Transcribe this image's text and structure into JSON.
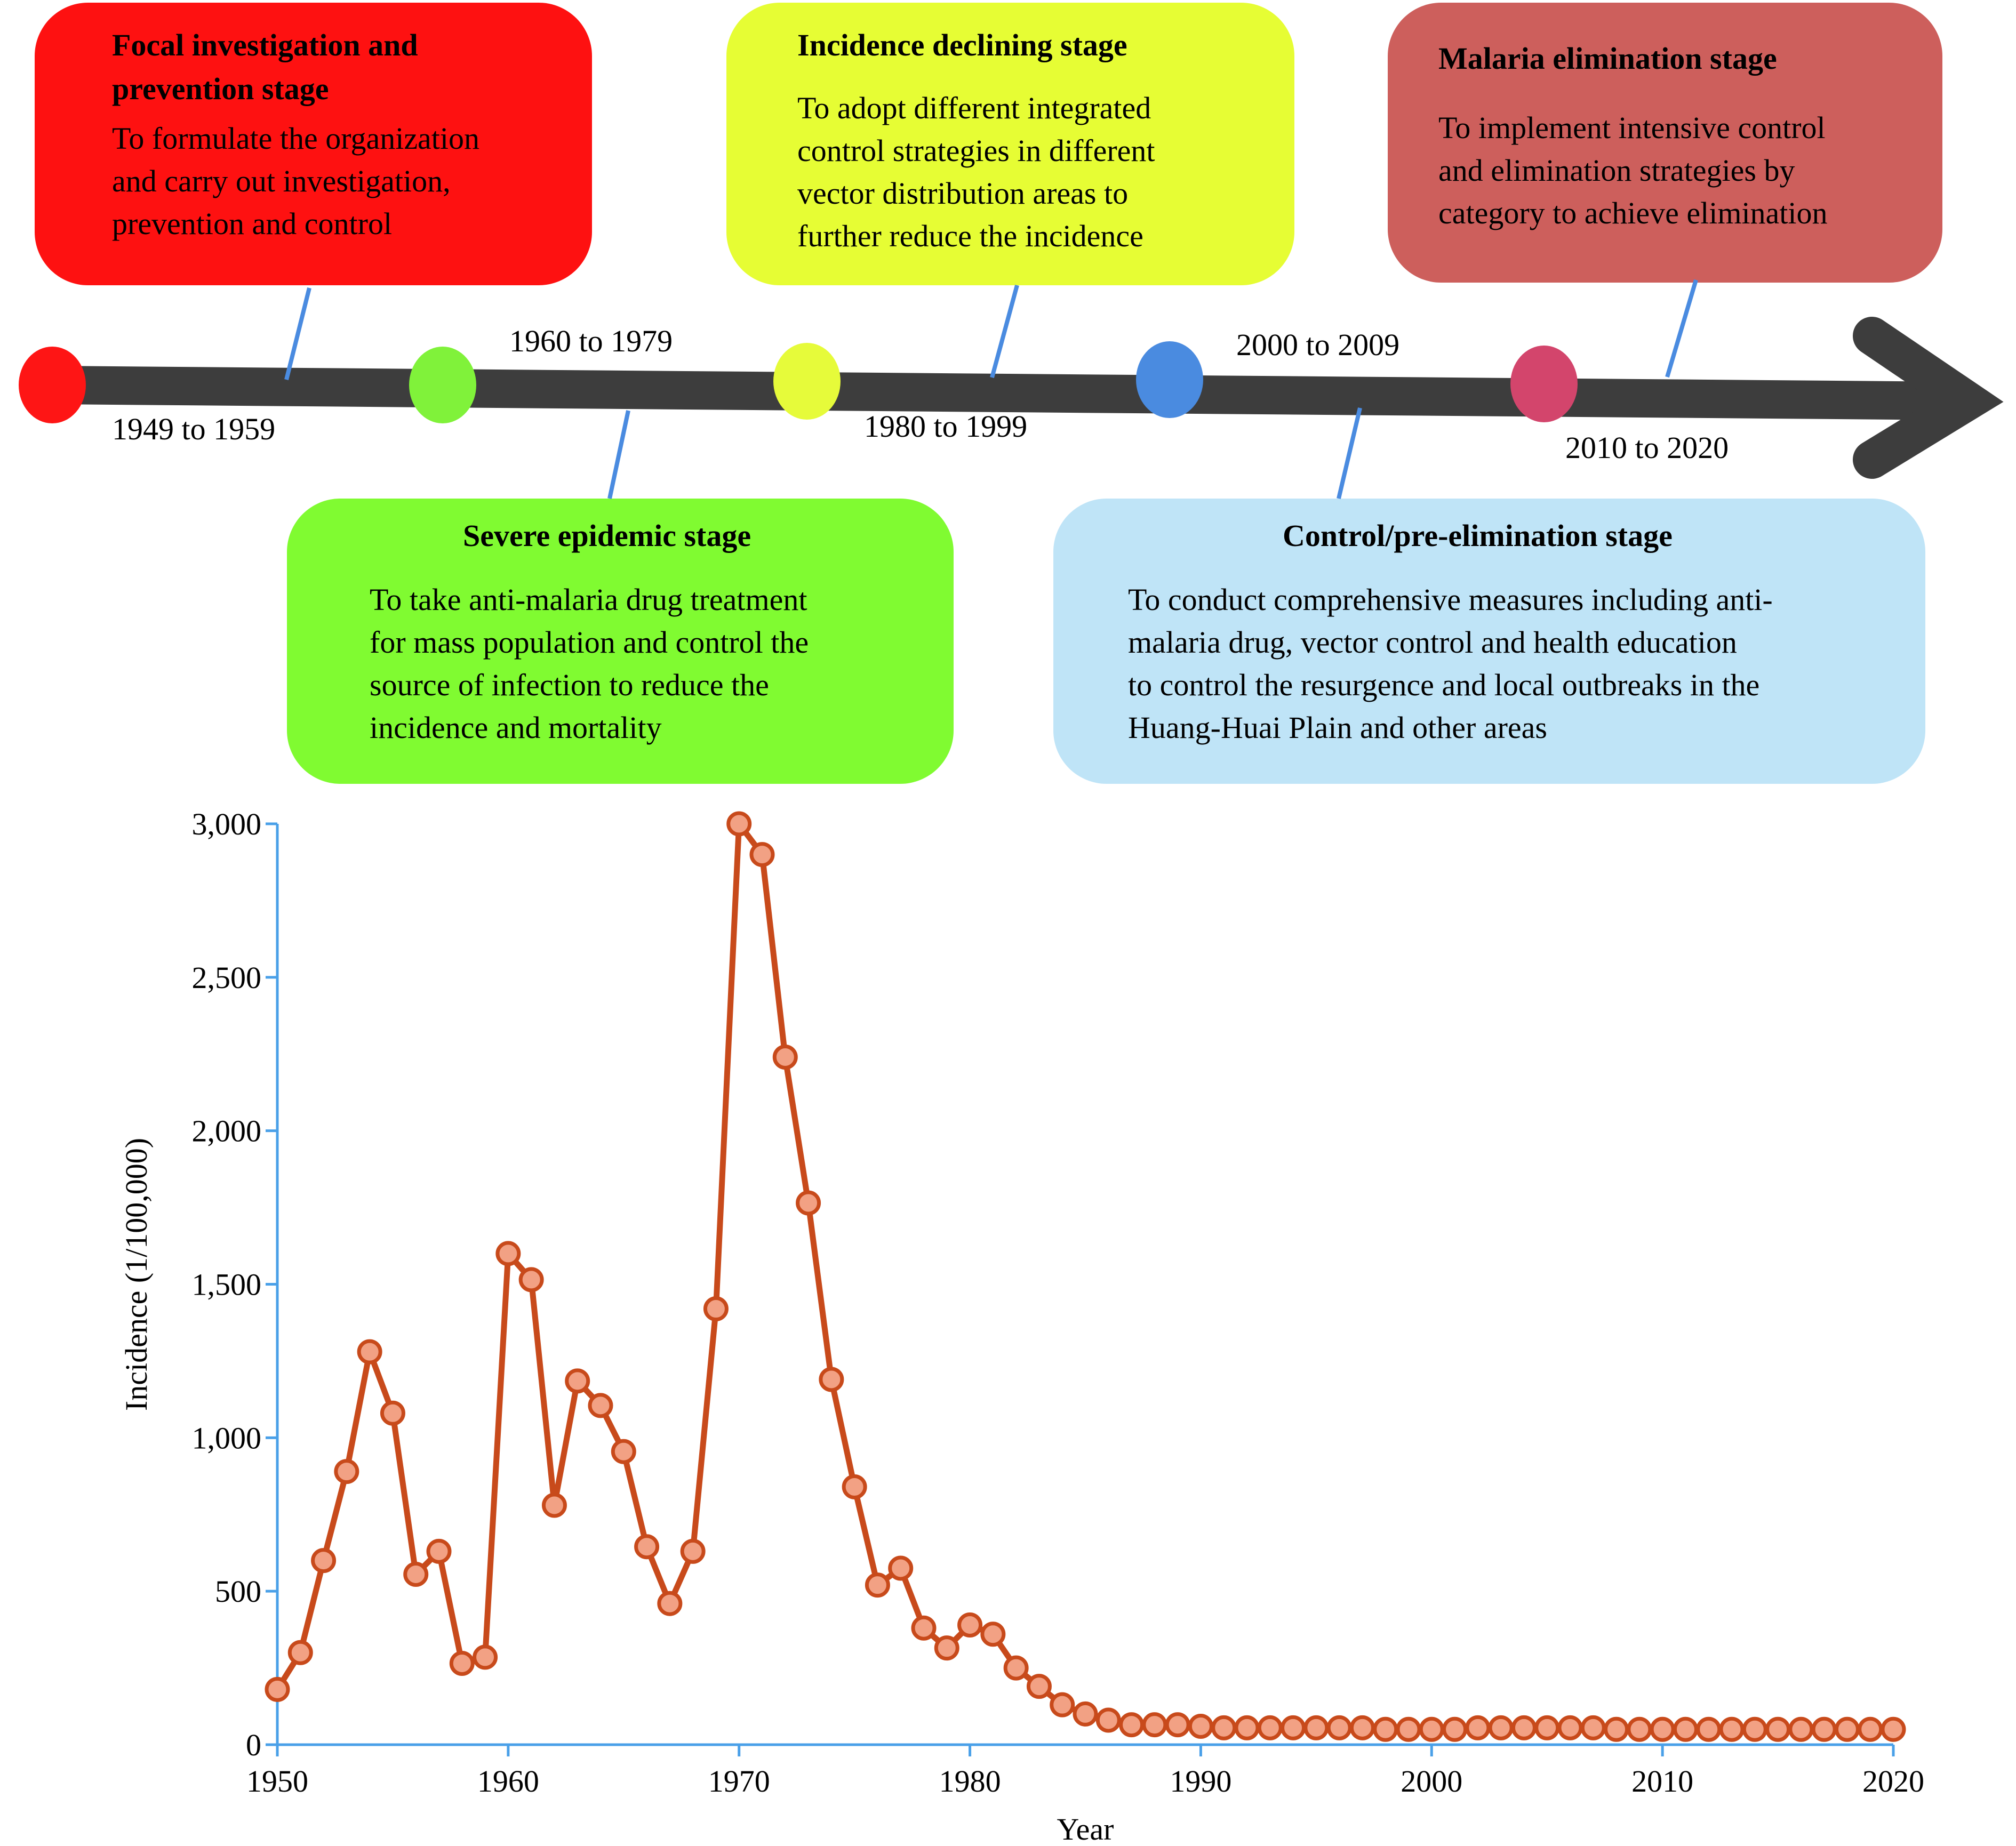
{
  "timeline": {
    "stages": [
      {
        "period": "1949 to 1959",
        "title_lines": [
          "Focal investigation and",
          "prevention stage"
        ],
        "text": "To formulate the organization\nand carry out investigation,\nprevention and control",
        "box_color": "#fe1111",
        "dot_color": "#fe1515"
      },
      {
        "period": "1960 to 1979",
        "title_lines": [
          "Severe epidemic stage"
        ],
        "text": "To take anti-malaria drug treatment\nfor mass population and control the\nsource of infection to reduce the\nincidence and mortality",
        "box_color": "#80fb31",
        "dot_color": "#80f23a"
      },
      {
        "period": "1980 to 1999",
        "title_lines": [
          "Incidence declining stage"
        ],
        "text": "To adopt different integrated\ncontrol strategies in different\nvector distribution areas to\nfurther reduce the incidence",
        "box_color": "#e6fd34",
        "dot_color": "#e6fb3a"
      },
      {
        "period": "2000 to 2009",
        "title_lines": [
          "Control/pre-elimination stage"
        ],
        "text": "To conduct comprehensive measures including anti-\nmalaria drug, vector control and health education\nto control the resurgence and local outbreaks in the\nHuang-Huai Plain and other areas",
        "box_color": "#bfe4f7",
        "dot_color": "#4a8be0"
      },
      {
        "period": "2010 to 2020",
        "title_lines": [
          "Malaria elimination stage"
        ],
        "text": "To implement intensive control\nand elimination strategies by\ncategory to achieve elimination",
        "box_color": "#cd5f5c",
        "dot_color": "#d3456c"
      }
    ],
    "arrow_color": "#3d3d3d",
    "connector_color": "#4a8be0"
  },
  "chart_data": {
    "type": "line",
    "xlabel": "Year",
    "ylabel": "Incidence (1/100,000)",
    "xlim": [
      1950,
      2020
    ],
    "ylim": [
      0,
      3000
    ],
    "xticks": [
      "1950",
      "1960",
      "1970",
      "1980",
      "1990",
      "2000",
      "2010",
      "2020"
    ],
    "yticks": [
      "0",
      "500",
      "1,000",
      "1,500",
      "2,000",
      "2,500",
      "3,000"
    ],
    "line_color": "#c84a1b",
    "marker_fill": "#f2a184",
    "axis_color": "#4aa0e8",
    "grid": false,
    "series": [
      {
        "x": [
          1950,
          1951,
          1952,
          1953,
          1954,
          1955,
          1956,
          1957,
          1958,
          1959,
          1960,
          1961,
          1962,
          1963,
          1964,
          1965,
          1966,
          1967,
          1968,
          1969,
          1970,
          1971,
          1972,
          1973,
          1974,
          1975,
          1976,
          1977,
          1978,
          1979,
          1980,
          1981,
          1982,
          1983,
          1984,
          1985,
          1986,
          1987,
          1988,
          1989,
          1990,
          1991,
          1992,
          1993,
          1994,
          1995,
          1996,
          1997,
          1998,
          1999,
          2000,
          2001,
          2002,
          2003,
          2004,
          2005,
          2006,
          2007,
          2008,
          2009,
          2010,
          2011,
          2012,
          2013,
          2014,
          2015,
          2016,
          2017,
          2018,
          2019,
          2020
        ],
        "values": [
          180,
          300,
          600,
          890,
          1280,
          1080,
          555,
          630,
          265,
          285,
          1600,
          1515,
          780,
          1185,
          1105,
          955,
          645,
          460,
          630,
          1420,
          3000,
          2900,
          2240,
          1765,
          1190,
          840,
          520,
          575,
          380,
          315,
          390,
          360,
          250,
          190,
          130,
          100,
          80,
          65,
          65,
          65,
          60,
          55,
          55,
          55,
          55,
          55,
          55,
          55,
          50,
          50,
          50,
          50,
          55,
          55,
          55,
          55,
          55,
          55,
          50,
          50,
          50,
          50,
          50,
          50,
          50,
          50,
          50,
          50,
          50,
          50,
          50
        ]
      }
    ]
  }
}
